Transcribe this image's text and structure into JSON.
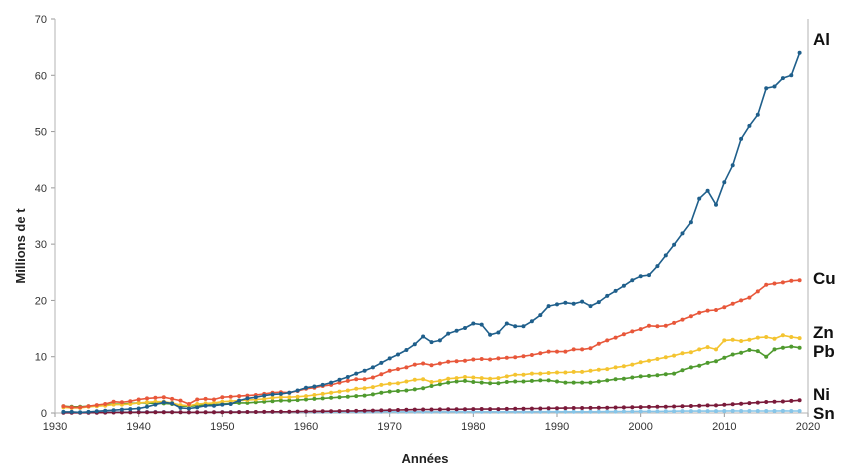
{
  "chart_data": {
    "type": "line",
    "title": "",
    "xlabel": "Années",
    "ylabel": "Millions de t",
    "xlim": [
      1930,
      2020
    ],
    "ylim": [
      0,
      70
    ],
    "xticks": [
      "1930",
      "1940",
      "1950",
      "1960",
      "1970",
      "1980",
      "1990",
      "2000",
      "2010",
      "2020"
    ],
    "yticks": [
      "0",
      "10",
      "20",
      "30",
      "40",
      "50",
      "60",
      "70"
    ],
    "grid": false,
    "x": [
      1931,
      1932,
      1933,
      1934,
      1935,
      1936,
      1937,
      1938,
      1939,
      1940,
      1941,
      1942,
      1943,
      1944,
      1945,
      1946,
      1947,
      1948,
      1949,
      1950,
      1951,
      1952,
      1953,
      1954,
      1955,
      1956,
      1957,
      1958,
      1959,
      1960,
      1961,
      1962,
      1963,
      1964,
      1965,
      1966,
      1967,
      1968,
      1969,
      1970,
      1971,
      1972,
      1973,
      1974,
      1975,
      1976,
      1977,
      1978,
      1979,
      1980,
      1981,
      1982,
      1983,
      1984,
      1985,
      1986,
      1987,
      1988,
      1989,
      1990,
      1991,
      1992,
      1993,
      1994,
      1995,
      1996,
      1997,
      1998,
      1999,
      2000,
      2001,
      2002,
      2003,
      2004,
      2005,
      2006,
      2007,
      2008,
      2009,
      2010,
      2011,
      2012,
      2013,
      2014,
      2015,
      2016,
      2017,
      2018,
      2019
    ],
    "series": [
      {
        "name": "Al",
        "color": "#1f5f8b",
        "values": [
          0.2,
          0.2,
          0.1,
          0.2,
          0.3,
          0.4,
          0.5,
          0.6,
          0.7,
          0.8,
          1.1,
          1.5,
          1.9,
          1.7,
          0.9,
          0.8,
          1.0,
          1.3,
          1.3,
          1.5,
          1.6,
          2.2,
          2.6,
          2.8,
          3.1,
          3.3,
          3.4,
          3.6,
          4.0,
          4.5,
          4.7,
          5.0,
          5.4,
          5.9,
          6.4,
          7.0,
          7.5,
          8.1,
          8.9,
          9.7,
          10.4,
          11.2,
          12.2,
          13.6,
          12.6,
          12.9,
          14.1,
          14.6,
          15.1,
          15.9,
          15.7,
          13.9,
          14.3,
          15.9,
          15.4,
          15.4,
          16.3,
          17.4,
          19.0,
          19.3,
          19.6,
          19.4,
          19.8,
          19.0,
          19.7,
          20.8,
          21.7,
          22.6,
          23.6,
          24.3,
          24.5,
          26.1,
          28.0,
          29.9,
          31.9,
          33.9,
          38.1,
          39.5,
          37.0,
          41.0,
          44.0,
          48.7,
          51.0,
          53.0,
          57.7,
          58.0,
          59.5,
          60.0,
          64.0
        ]
      },
      {
        "name": "Cu",
        "color": "#e8573a",
        "values": [
          1.2,
          1.0,
          1.0,
          1.2,
          1.4,
          1.6,
          2.0,
          1.9,
          2.1,
          2.4,
          2.6,
          2.7,
          2.8,
          2.5,
          2.2,
          1.6,
          2.4,
          2.5,
          2.4,
          2.8,
          2.9,
          3.0,
          3.1,
          3.2,
          3.4,
          3.6,
          3.7,
          3.6,
          3.9,
          4.3,
          4.5,
          4.8,
          5.0,
          5.4,
          5.7,
          6.0,
          6.0,
          6.3,
          6.9,
          7.5,
          7.8,
          8.1,
          8.6,
          8.8,
          8.5,
          8.8,
          9.1,
          9.2,
          9.3,
          9.5,
          9.6,
          9.5,
          9.7,
          9.8,
          9.9,
          10.1,
          10.3,
          10.6,
          10.9,
          10.9,
          10.9,
          11.3,
          11.3,
          11.5,
          12.3,
          12.9,
          13.4,
          14.0,
          14.5,
          14.9,
          15.5,
          15.4,
          15.5,
          16.0,
          16.6,
          17.2,
          17.8,
          18.2,
          18.3,
          18.8,
          19.4,
          20.0,
          20.5,
          21.6,
          22.8,
          23.0,
          23.2,
          23.5,
          23.6
        ]
      },
      {
        "name": "Zn",
        "color": "#f4c430",
        "values": [
          1.0,
          0.9,
          0.9,
          1.1,
          1.2,
          1.3,
          1.5,
          1.5,
          1.6,
          1.8,
          1.9,
          2.0,
          2.0,
          1.8,
          1.4,
          1.3,
          1.6,
          1.7,
          1.8,
          2.0,
          2.1,
          2.2,
          2.3,
          2.4,
          2.5,
          2.7,
          2.8,
          2.8,
          2.9,
          3.0,
          3.2,
          3.4,
          3.6,
          3.8,
          4.0,
          4.3,
          4.4,
          4.6,
          5.0,
          5.2,
          5.3,
          5.6,
          5.9,
          6.0,
          5.5,
          5.7,
          6.1,
          6.2,
          6.4,
          6.3,
          6.2,
          6.1,
          6.2,
          6.5,
          6.8,
          6.8,
          7.0,
          7.0,
          7.1,
          7.2,
          7.2,
          7.3,
          7.3,
          7.5,
          7.7,
          7.8,
          8.1,
          8.3,
          8.6,
          9.0,
          9.3,
          9.6,
          9.9,
          10.2,
          10.6,
          10.8,
          11.3,
          11.7,
          11.3,
          12.9,
          13.0,
          12.8,
          13.0,
          13.4,
          13.5,
          13.2,
          13.8,
          13.5,
          13.3
        ]
      },
      {
        "name": "Pb",
        "color": "#4f9a2e",
        "values": [
          1.2,
          1.1,
          1.1,
          1.2,
          1.3,
          1.4,
          1.6,
          1.6,
          1.7,
          1.8,
          1.8,
          1.7,
          1.7,
          1.6,
          1.2,
          1.2,
          1.3,
          1.4,
          1.5,
          1.6,
          1.7,
          1.8,
          1.8,
          1.9,
          2.0,
          2.1,
          2.2,
          2.2,
          2.3,
          2.4,
          2.5,
          2.6,
          2.7,
          2.8,
          2.9,
          3.0,
          3.1,
          3.3,
          3.6,
          3.8,
          3.9,
          4.0,
          4.2,
          4.4,
          4.8,
          5.1,
          5.4,
          5.6,
          5.7,
          5.5,
          5.4,
          5.3,
          5.3,
          5.5,
          5.6,
          5.6,
          5.7,
          5.8,
          5.8,
          5.6,
          5.4,
          5.4,
          5.4,
          5.4,
          5.6,
          5.8,
          6.0,
          6.1,
          6.3,
          6.5,
          6.6,
          6.7,
          6.9,
          7.0,
          7.6,
          8.1,
          8.4,
          8.9,
          9.2,
          9.8,
          10.4,
          10.7,
          11.2,
          11.0,
          10.0,
          11.3,
          11.6,
          11.8,
          11.6
        ]
      },
      {
        "name": "Ni",
        "color": "#7a1a3a",
        "values": [
          0.03,
          0.03,
          0.04,
          0.05,
          0.06,
          0.07,
          0.09,
          0.1,
          0.1,
          0.12,
          0.13,
          0.14,
          0.15,
          0.14,
          0.12,
          0.1,
          0.12,
          0.13,
          0.13,
          0.14,
          0.15,
          0.16,
          0.17,
          0.18,
          0.2,
          0.21,
          0.22,
          0.22,
          0.24,
          0.26,
          0.28,
          0.3,
          0.32,
          0.34,
          0.36,
          0.38,
          0.4,
          0.43,
          0.46,
          0.5,
          0.53,
          0.56,
          0.6,
          0.63,
          0.62,
          0.64,
          0.66,
          0.66,
          0.68,
          0.7,
          0.71,
          0.7,
          0.7,
          0.72,
          0.74,
          0.76,
          0.78,
          0.8,
          0.83,
          0.85,
          0.87,
          0.88,
          0.88,
          0.9,
          0.93,
          0.95,
          0.97,
          1.0,
          1.02,
          1.05,
          1.08,
          1.1,
          1.12,
          1.15,
          1.2,
          1.25,
          1.3,
          1.35,
          1.35,
          1.45,
          1.55,
          1.65,
          1.75,
          1.85,
          1.95,
          2.0,
          2.05,
          2.15,
          2.25
        ]
      },
      {
        "name": "Sn",
        "color": "#87c5e8",
        "values": [
          0.15,
          0.12,
          0.12,
          0.13,
          0.15,
          0.17,
          0.19,
          0.17,
          0.18,
          0.2,
          0.2,
          0.19,
          0.18,
          0.16,
          0.12,
          0.12,
          0.13,
          0.14,
          0.15,
          0.16,
          0.17,
          0.17,
          0.18,
          0.18,
          0.18,
          0.18,
          0.18,
          0.17,
          0.18,
          0.18,
          0.18,
          0.19,
          0.19,
          0.19,
          0.2,
          0.2,
          0.2,
          0.21,
          0.21,
          0.22,
          0.22,
          0.22,
          0.23,
          0.23,
          0.22,
          0.22,
          0.23,
          0.23,
          0.23,
          0.23,
          0.22,
          0.21,
          0.21,
          0.21,
          0.21,
          0.21,
          0.22,
          0.22,
          0.23,
          0.23,
          0.22,
          0.22,
          0.22,
          0.22,
          0.23,
          0.24,
          0.25,
          0.26,
          0.27,
          0.28,
          0.28,
          0.29,
          0.3,
          0.32,
          0.33,
          0.34,
          0.34,
          0.34,
          0.33,
          0.36,
          0.37,
          0.36,
          0.36,
          0.36,
          0.35,
          0.36,
          0.37,
          0.36,
          0.35
        ]
      }
    ]
  }
}
